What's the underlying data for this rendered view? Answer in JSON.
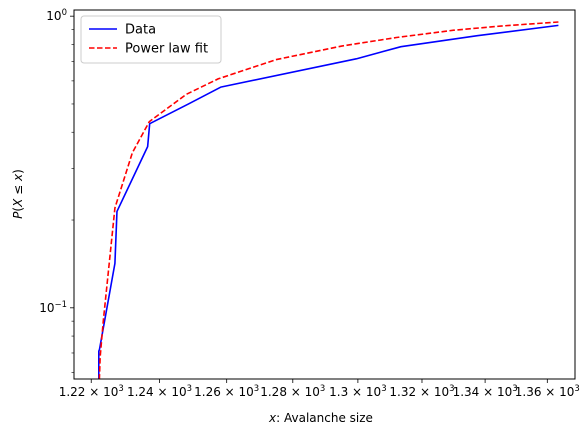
{
  "chart_data": {
    "type": "line",
    "xlabel": "$x:$ Avalanche size",
    "xlabel_parts": {
      "var": "x",
      "rest": " Avalanche size"
    },
    "ylabel": "$P(X \\leq x)$",
    "xscale": "log",
    "yscale": "log",
    "xlim": [
      1215,
      1369
    ],
    "ylim": [
      0.057,
      1.05
    ],
    "x_ticks": [
      1220,
      1240,
      1260,
      1280,
      1300,
      1320,
      1340,
      1360
    ],
    "x_tick_labels": [
      {
        "mantissa": "1.22",
        "base": "10",
        "exp": "3"
      },
      {
        "mantissa": "1.24",
        "base": "10",
        "exp": "3"
      },
      {
        "mantissa": "1.26",
        "base": "10",
        "exp": "3"
      },
      {
        "mantissa": "1.28",
        "base": "10",
        "exp": "3"
      },
      {
        "mantissa": "1.3",
        "base": "10",
        "exp": "3"
      },
      {
        "mantissa": "1.32",
        "base": "10",
        "exp": "3"
      },
      {
        "mantissa": "1.34",
        "base": "10",
        "exp": "3"
      },
      {
        "mantissa": "1.36",
        "base": "10",
        "exp": "3"
      }
    ],
    "y_ticks": [
      {
        "value": 0.1,
        "base": "10",
        "exp": "−1"
      },
      {
        "value": 1.0,
        "base": "10",
        "exp": "0"
      }
    ],
    "y_minor_ticks": [
      0.06,
      0.07,
      0.08,
      0.09,
      0.2,
      0.3,
      0.4,
      0.5,
      0.6,
      0.7,
      0.8,
      0.9
    ],
    "legend_position": "upper-left",
    "grid": false,
    "series": [
      {
        "name": "Data",
        "color": "#0000ff",
        "style": "solid",
        "x": [
          1222.2,
          1222.2,
          1222.4,
          1226.9,
          1227.5,
          1236.5,
          1237.1,
          1248.6,
          1258.2,
          1299.5,
          1313.4,
          1337.5,
          1363.6
        ],
        "y": [
          0.05,
          0.071,
          0.072,
          0.142,
          0.214,
          0.357,
          0.428,
          0.5,
          0.571,
          0.714,
          0.786,
          0.857,
          0.93
        ]
      },
      {
        "name": "Power law fit",
        "color": "#ff0000",
        "style": "dashed",
        "x": [
          1222.2,
          1222.6,
          1223.5,
          1226.9,
          1232.0,
          1237.0,
          1242.0,
          1248.0,
          1257.5,
          1275.0,
          1295.0,
          1312.0,
          1330.0,
          1345.0,
          1363.6
        ],
        "y": [
          0.05,
          0.068,
          0.09,
          0.22,
          0.34,
          0.435,
          0.48,
          0.54,
          0.61,
          0.71,
          0.79,
          0.845,
          0.895,
          0.925,
          0.955
        ]
      }
    ]
  }
}
